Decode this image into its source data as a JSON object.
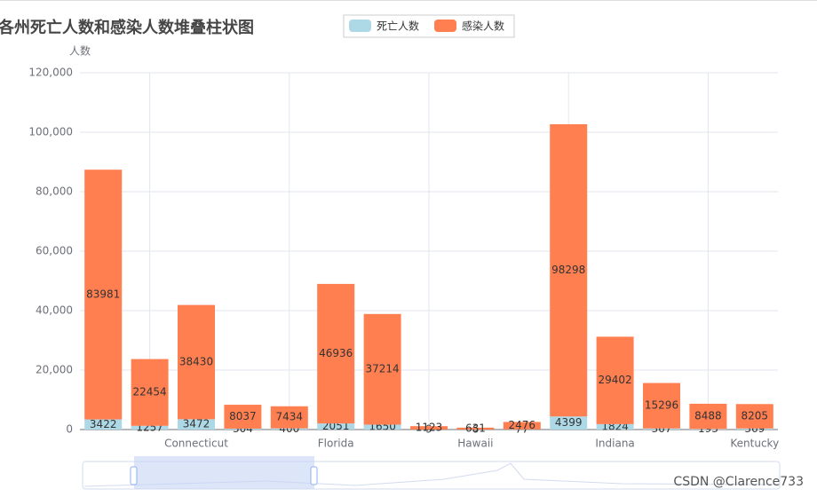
{
  "chart_data": {
    "type": "stacked-bar",
    "title": "各州死亡人数和感染人数堆叠柱状图",
    "y_label": "人数",
    "categories": [
      null,
      null,
      "Connecticut",
      null,
      null,
      "Florida",
      null,
      null,
      "Hawaii",
      null,
      null,
      "Indiana",
      null,
      null,
      "Kentucky"
    ],
    "series": [
      {
        "name": "死亡人数",
        "color": "#add8e6",
        "values": [
          3422,
          1257,
          3472,
          304,
          400,
          2051,
          1650,
          9,
          6,
          77,
          4399,
          1824,
          367,
          193,
          369
        ]
      },
      {
        "name": "感染人数",
        "color": "#ff7f50",
        "values": [
          83981,
          22454,
          38430,
          8037,
          7434,
          46936,
          37214,
          1123,
          631,
          2476,
          98298,
          29402,
          15296,
          8488,
          8205
        ]
      }
    ],
    "ylim": [
      0,
      120000
    ],
    "yticks": [
      {
        "value": 0,
        "label": "0"
      },
      {
        "value": 20000,
        "label": "20,000"
      },
      {
        "value": 40000,
        "label": "40,000"
      },
      {
        "value": 60000,
        "label": "60,000"
      },
      {
        "value": 80000,
        "label": "80,000"
      },
      {
        "value": 100000,
        "label": "100,000"
      },
      {
        "value": 120000,
        "label": "120,000"
      }
    ],
    "grid": true,
    "legend": "top",
    "watermark": "CSDN @Clarence733"
  }
}
